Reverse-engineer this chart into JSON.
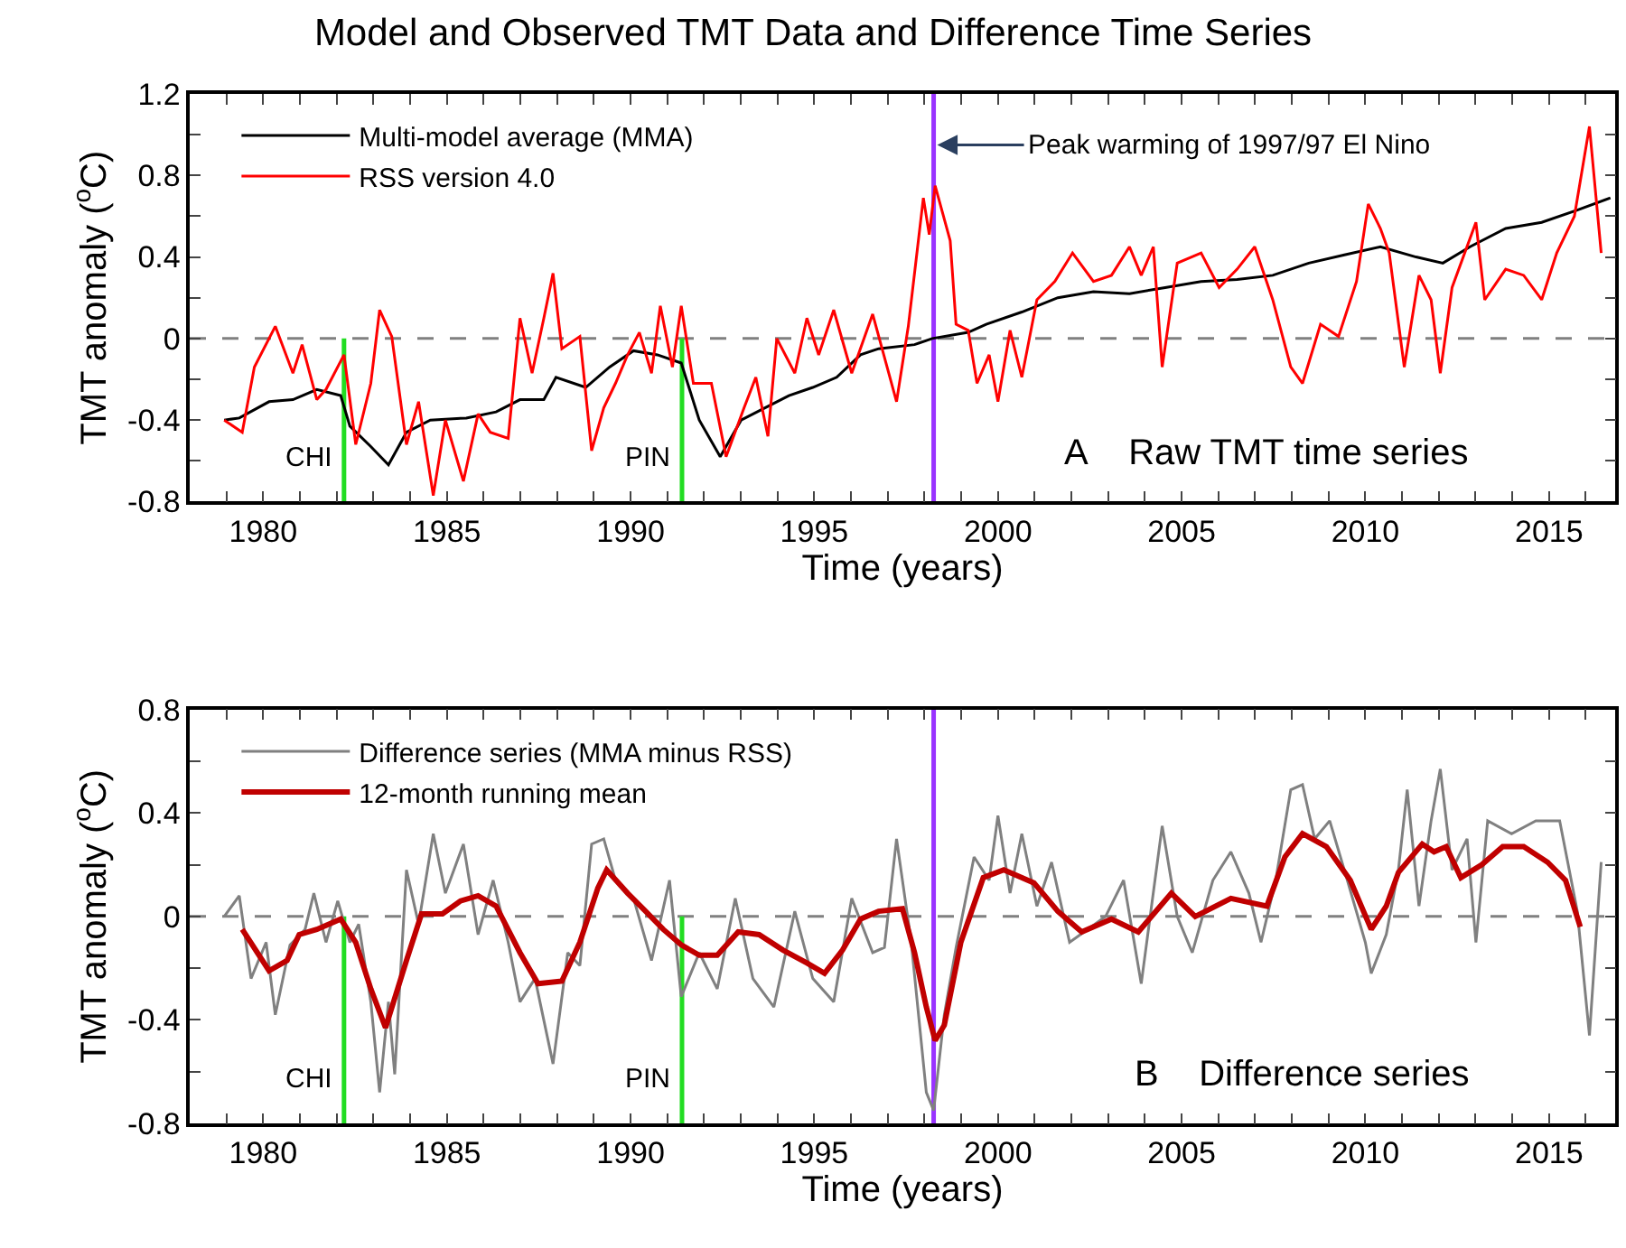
{
  "chart_data": [
    {
      "type": "line",
      "title": "Model and Observed TMT Data and Difference Time Series",
      "xlabel": "Time (years)",
      "ylabel": "TMT anomaly ($^{o}$C)",
      "xlim": [
        1978,
        2016.8
      ],
      "ylim": [
        -0.8,
        1.2
      ],
      "xticks": [
        {
          "value": 1979,
          "label": null
        },
        1980,
        {
          "value": 1981,
          "label": null
        },
        {
          "value": 1982,
          "label": null
        },
        {
          "value": 1983,
          "label": null
        },
        {
          "value": 1984,
          "label": null
        },
        1985,
        {
          "value": 1986,
          "label": null
        },
        {
          "value": 1987,
          "label": null
        },
        {
          "value": 1988,
          "label": null
        },
        {
          "value": 1989,
          "label": null
        },
        1990,
        {
          "value": 1991,
          "label": null
        },
        {
          "value": 1992,
          "label": null
        },
        {
          "value": 1993,
          "label": null
        },
        {
          "value": 1994,
          "label": null
        },
        1995,
        {
          "value": 1996,
          "label": null
        },
        {
          "value": 1997,
          "label": null
        },
        {
          "value": 1998,
          "label": null
        },
        {
          "value": 1999,
          "label": null
        },
        2000,
        {
          "value": 2001,
          "label": null
        },
        {
          "value": 2002,
          "label": null
        },
        {
          "value": 2003,
          "label": null
        },
        {
          "value": 2004,
          "label": null
        },
        2005,
        {
          "value": 2006,
          "label": null
        },
        {
          "value": 2007,
          "label": null
        },
        {
          "value": 2008,
          "label": null
        },
        {
          "value": 2009,
          "label": null
        },
        2010,
        {
          "value": 2011,
          "label": null
        },
        {
          "value": 2012,
          "label": null
        },
        {
          "value": 2013,
          "label": null
        },
        {
          "value": 2014,
          "label": null
        },
        2015,
        {
          "value": 2016,
          "label": null
        }
      ],
      "yticks": [
        -0.8,
        {
          "value": -0.6,
          "label": null
        },
        -0.4,
        {
          "value": -0.2,
          "label": null
        },
        0,
        {
          "value": 0.2,
          "label": null
        },
        0.4,
        {
          "value": 0.6,
          "label": null
        },
        0.8,
        {
          "value": 1.0,
          "label": null
        },
        1.2
      ],
      "grid": false,
      "legend": "top left",
      "marker": "none",
      "line_style": "solid",
      "series": [
        {
          "name": "Multi-model average (MMA)",
          "color": "#000000",
          "x": [
            1978.94,
            1979.35,
            1980.16,
            1980.81,
            1981.46,
            1982.11,
            1982.36,
            1982.93,
            1983.41,
            1983.9,
            1984.55,
            1985.53,
            1986.34,
            1986.99,
            1987.64,
            1987.97,
            1988.78,
            1989.43,
            1990.08,
            1990.73,
            1991.38,
            1991.87,
            1992.44,
            1993.01,
            1993.66,
            1994.31,
            1994.96,
            1995.61,
            1996.26,
            1996.75,
            1997.73,
            1998.21,
            1999.19,
            1999.68,
            2000.65,
            2001.63,
            2002.6,
            2003.58,
            2004.55,
            2005.53,
            2006.51,
            2007.48,
            2008.46,
            2009.43,
            2010.41,
            2011.38,
            2012.11,
            2012.85,
            2013.82,
            2014.8,
            2015.77,
            2016.67
          ],
          "values": [
            -0.4,
            -0.39,
            -0.31,
            -0.3,
            -0.25,
            -0.28,
            -0.43,
            -0.53,
            -0.62,
            -0.46,
            -0.4,
            -0.39,
            -0.36,
            -0.3,
            -0.3,
            -0.19,
            -0.24,
            -0.14,
            -0.06,
            -0.08,
            -0.12,
            -0.4,
            -0.58,
            -0.4,
            -0.34,
            -0.28,
            -0.24,
            -0.19,
            -0.08,
            -0.05,
            -0.03,
            0.0,
            0.03,
            0.07,
            0.13,
            0.2,
            0.23,
            0.22,
            0.25,
            0.28,
            0.29,
            0.31,
            0.37,
            0.41,
            0.45,
            0.4,
            0.37,
            0.45,
            0.54,
            0.57,
            0.63,
            0.69
          ]
        },
        {
          "name": "RSS version 4.0",
          "color": "#ff0000",
          "x": [
            1978.94,
            1979.43,
            1979.76,
            1980.33,
            1980.81,
            1981.06,
            1981.46,
            1981.71,
            1982.2,
            1982.52,
            1982.93,
            1983.17,
            1983.5,
            1983.9,
            1984.23,
            1984.63,
            1984.96,
            1985.45,
            1985.85,
            1986.18,
            1986.67,
            1986.99,
            1987.32,
            1987.64,
            1987.89,
            1988.13,
            1988.62,
            1988.94,
            1989.27,
            1989.59,
            1989.92,
            1990.24,
            1990.57,
            1990.81,
            1991.14,
            1991.38,
            1991.71,
            1992.2,
            1992.6,
            1993.09,
            1993.41,
            1993.74,
            1993.98,
            1994.47,
            1994.8,
            1995.12,
            1995.53,
            1996.02,
            1996.59,
            1997.24,
            1997.56,
            1997.97,
            1998.13,
            1998.29,
            1998.7,
            1998.86,
            1999.19,
            1999.43,
            1999.76,
            2000.0,
            2000.33,
            2000.65,
            2001.06,
            2001.55,
            2002.03,
            2002.6,
            2003.09,
            2003.58,
            2003.9,
            2004.23,
            2004.47,
            2004.88,
            2005.53,
            2006.02,
            2006.51,
            2006.99,
            2007.48,
            2007.97,
            2008.29,
            2008.78,
            2009.27,
            2009.76,
            2010.08,
            2010.41,
            2010.65,
            2011.06,
            2011.46,
            2011.79,
            2012.04,
            2012.36,
            2013.01,
            2013.25,
            2013.82,
            2014.31,
            2014.8,
            2015.21,
            2015.69,
            2016.1,
            2016.42
          ],
          "values": [
            -0.4,
            -0.46,
            -0.14,
            0.06,
            -0.17,
            -0.03,
            -0.3,
            -0.25,
            -0.08,
            -0.52,
            -0.22,
            0.14,
            0.01,
            -0.52,
            -0.31,
            -0.77,
            -0.4,
            -0.7,
            -0.37,
            -0.46,
            -0.49,
            0.1,
            -0.17,
            0.1,
            0.32,
            -0.05,
            0.01,
            -0.55,
            -0.34,
            -0.22,
            -0.08,
            0.03,
            -0.17,
            0.16,
            -0.14,
            0.16,
            -0.22,
            -0.22,
            -0.58,
            -0.34,
            -0.19,
            -0.48,
            0.0,
            -0.17,
            0.1,
            -0.08,
            0.14,
            -0.17,
            0.12,
            -0.31,
            0.06,
            0.69,
            0.51,
            0.75,
            0.48,
            0.07,
            0.04,
            -0.22,
            -0.08,
            -0.31,
            0.04,
            -0.19,
            0.19,
            0.28,
            0.42,
            0.28,
            0.31,
            0.45,
            0.31,
            0.45,
            -0.14,
            0.37,
            0.42,
            0.25,
            0.34,
            0.45,
            0.19,
            -0.14,
            -0.22,
            0.07,
            0.01,
            0.28,
            0.66,
            0.54,
            0.42,
            -0.14,
            0.31,
            0.19,
            -0.17,
            0.25,
            0.57,
            0.19,
            0.34,
            0.31,
            0.19,
            0.42,
            0.6,
            1.04,
            0.42
          ]
        }
      ],
      "ref_lines": [
        {
          "axis": "y",
          "value": 0,
          "label": null,
          "color": "#808080",
          "line_style": "dashed"
        },
        {
          "axis": "x",
          "value": 1982.2,
          "label": "CHI",
          "color": "#22dd22",
          "line_style": "solid"
        },
        {
          "axis": "x",
          "value": 1991.4,
          "label": "PIN",
          "color": "#22dd22",
          "line_style": "solid"
        },
        {
          "axis": "x",
          "value": 1998.25,
          "label": null,
          "color": "#9933ff",
          "line_style": "solid"
        }
      ],
      "annotations": [
        {
          "text": "Peak warming of 1997/97 El Nino",
          "x": 1998.25,
          "y": 0.95
        },
        "A    Raw TMT time series"
      ]
    },
    {
      "type": "line",
      "xlabel": "Time (years)",
      "ylabel": "TMT anomaly ($^{o}$C)",
      "xlim": [
        1978,
        2016.8
      ],
      "ylim": [
        -0.8,
        0.8
      ],
      "xticks": [
        {
          "value": 1979,
          "label": null
        },
        1980,
        {
          "value": 1981,
          "label": null
        },
        {
          "value": 1982,
          "label": null
        },
        {
          "value": 1983,
          "label": null
        },
        {
          "value": 1984,
          "label": null
        },
        1985,
        {
          "value": 1986,
          "label": null
        },
        {
          "value": 1987,
          "label": null
        },
        {
          "value": 1988,
          "label": null
        },
        {
          "value": 1989,
          "label": null
        },
        1990,
        {
          "value": 1991,
          "label": null
        },
        {
          "value": 1992,
          "label": null
        },
        {
          "value": 1993,
          "label": null
        },
        {
          "value": 1994,
          "label": null
        },
        1995,
        {
          "value": 1996,
          "label": null
        },
        {
          "value": 1997,
          "label": null
        },
        {
          "value": 1998,
          "label": null
        },
        {
          "value": 1999,
          "label": null
        },
        2000,
        {
          "value": 2001,
          "label": null
        },
        {
          "value": 2002,
          "label": null
        },
        {
          "value": 2003,
          "label": null
        },
        {
          "value": 2004,
          "label": null
        },
        2005,
        {
          "value": 2006,
          "label": null
        },
        {
          "value": 2007,
          "label": null
        },
        {
          "value": 2008,
          "label": null
        },
        {
          "value": 2009,
          "label": null
        },
        2010,
        {
          "value": 2011,
          "label": null
        },
        {
          "value": 2012,
          "label": null
        },
        {
          "value": 2013,
          "label": null
        },
        {
          "value": 2014,
          "label": null
        },
        2015,
        {
          "value": 2016,
          "label": null
        }
      ],
      "yticks": [
        -0.8,
        {
          "value": -0.6,
          "label": null
        },
        -0.4,
        {
          "value": -0.2,
          "label": null
        },
        0,
        {
          "value": 0.2,
          "label": null
        },
        0.4,
        {
          "value": 0.6,
          "label": null
        },
        0.8
      ],
      "grid": false,
      "legend": "top left",
      "marker": "none",
      "line_style": "solid",
      "series": [
        {
          "name": "Difference series (MMA minus RSS)",
          "color": "#808080",
          "x": [
            1978.94,
            1979.35,
            1979.67,
            1980.08,
            1980.33,
            1980.73,
            1981.14,
            1981.38,
            1981.71,
            1982.03,
            1982.36,
            1982.6,
            1982.93,
            1983.17,
            1983.41,
            1983.58,
            1983.9,
            1984.23,
            1984.63,
            1984.96,
            1985.45,
            1985.85,
            1986.26,
            1986.67,
            1986.99,
            1987.4,
            1987.89,
            1988.29,
            1988.62,
            1988.94,
            1989.27,
            1989.59,
            1990.08,
            1990.57,
            1991.06,
            1991.38,
            1991.87,
            1992.36,
            1992.85,
            1993.33,
            1993.9,
            1994.47,
            1994.96,
            1995.53,
            1996.02,
            1996.59,
            1996.91,
            1997.24,
            1997.64,
            1998.05,
            1998.25,
            1998.54,
            1998.86,
            1999.35,
            1999.76,
            2000.0,
            2000.33,
            2000.65,
            2001.06,
            2001.46,
            2001.95,
            2002.44,
            2002.93,
            2003.42,
            2003.9,
            2004.47,
            2004.88,
            2005.29,
            2005.85,
            2006.34,
            2006.83,
            2007.16,
            2007.56,
            2007.97,
            2008.29,
            2008.62,
            2009.03,
            2009.51,
            2010.0,
            2010.16,
            2010.57,
            2010.9,
            2011.14,
            2011.46,
            2011.79,
            2012.04,
            2012.36,
            2012.77,
            2013.01,
            2013.33,
            2013.98,
            2014.64,
            2015.29,
            2015.77,
            2016.1,
            2016.42
          ],
          "values": [
            0.0,
            0.08,
            -0.24,
            -0.1,
            -0.38,
            -0.11,
            -0.05,
            0.09,
            -0.1,
            0.06,
            -0.1,
            -0.03,
            -0.33,
            -0.68,
            -0.33,
            -0.61,
            0.18,
            -0.03,
            0.32,
            0.09,
            0.28,
            -0.07,
            0.14,
            -0.1,
            -0.33,
            -0.24,
            -0.57,
            -0.14,
            -0.19,
            0.28,
            0.3,
            0.14,
            0.07,
            -0.17,
            0.14,
            -0.31,
            -0.14,
            -0.28,
            0.07,
            -0.24,
            -0.35,
            0.02,
            -0.24,
            -0.33,
            0.07,
            -0.14,
            -0.12,
            0.3,
            -0.1,
            -0.68,
            -0.75,
            -0.38,
            -0.12,
            0.23,
            0.14,
            0.39,
            0.09,
            0.32,
            0.04,
            0.21,
            -0.1,
            -0.05,
            0.0,
            0.14,
            -0.26,
            0.35,
            0.0,
            -0.14,
            0.14,
            0.25,
            0.09,
            -0.1,
            0.14,
            0.49,
            0.51,
            0.3,
            0.37,
            0.14,
            -0.1,
            -0.22,
            -0.07,
            0.18,
            0.49,
            0.04,
            0.37,
            0.57,
            0.18,
            0.3,
            -0.1,
            0.37,
            0.32,
            0.37,
            0.37,
            0.02,
            -0.46,
            0.21
          ]
        },
        {
          "name": "12-month running mean",
          "color": "#c00000",
          "x": [
            1979.43,
            1980.16,
            1980.65,
            1980.98,
            1981.46,
            1982.11,
            1982.52,
            1982.93,
            1983.33,
            1983.9,
            1984.31,
            1984.88,
            1985.37,
            1985.85,
            1986.34,
            1986.99,
            1987.48,
            1988.13,
            1988.62,
            1989.11,
            1989.35,
            1989.92,
            1990.41,
            1990.89,
            1991.38,
            1991.87,
            1992.36,
            1992.93,
            1993.5,
            1994.15,
            1994.8,
            1995.28,
            1995.77,
            1996.26,
            1996.75,
            1997.4,
            1997.73,
            1998.05,
            1998.29,
            1998.54,
            1998.99,
            1999.6,
            2000.16,
            2000.98,
            2001.63,
            2002.28,
            2003.09,
            2003.82,
            2004.72,
            2005.37,
            2006.34,
            2007.32,
            2007.81,
            2008.29,
            2008.94,
            2009.59,
            2010.16,
            2010.57,
            2010.9,
            2011.55,
            2011.87,
            2012.2,
            2012.6,
            2013.17,
            2013.74,
            2014.31,
            2014.96,
            2015.45,
            2015.85
          ],
          "values": [
            -0.05,
            -0.21,
            -0.17,
            -0.07,
            -0.05,
            -0.01,
            -0.1,
            -0.28,
            -0.43,
            -0.17,
            0.01,
            0.01,
            0.06,
            0.08,
            0.04,
            -0.14,
            -0.26,
            -0.25,
            -0.1,
            0.11,
            0.18,
            0.09,
            0.02,
            -0.05,
            -0.11,
            -0.15,
            -0.15,
            -0.06,
            -0.07,
            -0.13,
            -0.18,
            -0.22,
            -0.13,
            -0.01,
            0.02,
            0.03,
            -0.14,
            -0.35,
            -0.48,
            -0.42,
            -0.1,
            0.15,
            0.18,
            0.13,
            0.02,
            -0.06,
            -0.01,
            -0.06,
            0.09,
            0.0,
            0.07,
            0.04,
            0.23,
            0.32,
            0.27,
            0.14,
            -0.05,
            0.04,
            0.17,
            0.28,
            0.25,
            0.27,
            0.15,
            0.2,
            0.27,
            0.27,
            0.21,
            0.14,
            -0.04
          ]
        }
      ],
      "ref_lines": [
        {
          "axis": "y",
          "value": 0,
          "label": null,
          "color": "#808080",
          "line_style": "dashed"
        },
        {
          "axis": "x",
          "value": 1982.2,
          "label": "CHI",
          "color": "#22dd22",
          "line_style": "solid"
        },
        {
          "axis": "x",
          "value": 1991.4,
          "label": "PIN",
          "color": "#22dd22",
          "line_style": "solid"
        },
        {
          "axis": "x",
          "value": 1998.25,
          "label": null,
          "color": "#9933ff",
          "line_style": "solid"
        }
      ],
      "annotations": [
        "B    Difference series"
      ]
    }
  ]
}
